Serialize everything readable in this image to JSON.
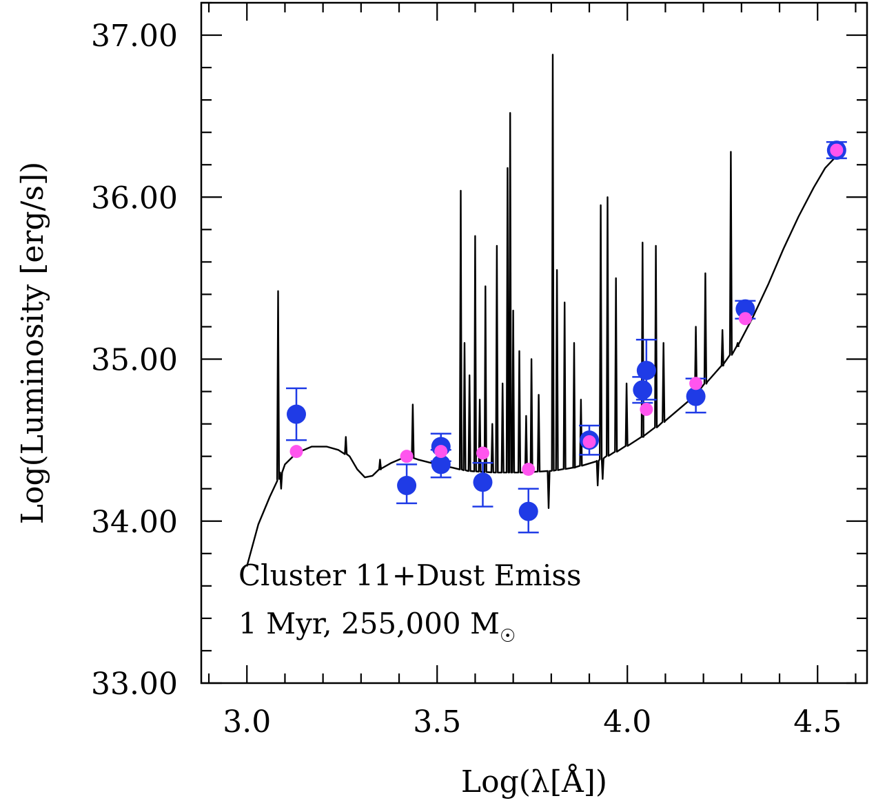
{
  "chart_data": {
    "type": "scatter",
    "xlabel": "Log(λ[Å])",
    "ylabel": "Log(Luminosity [erg/s])",
    "xlim": [
      2.88,
      4.63
    ],
    "ylim": [
      33.0,
      37.2
    ],
    "x_ticks": [
      3.0,
      3.5,
      4.0,
      4.5
    ],
    "x_tick_labels": [
      "3.0",
      "3.5",
      "4.0",
      "4.5"
    ],
    "y_ticks": [
      33.0,
      34.0,
      35.0,
      36.0,
      37.0
    ],
    "y_tick_labels": [
      "33.00",
      "34.00",
      "35.00",
      "36.00",
      "37.00"
    ],
    "annotation_line1": "Cluster 11+Dust Emiss",
    "annotation_line2": "1 Myr, 255,000 M",
    "annotation_symbol": "☉",
    "colors": {
      "observed": "#1f3be6",
      "model": "#ff55ee",
      "spectrum": "#000000"
    },
    "series": [
      {
        "marker": "filled-circle",
        "color": "#1f3be6",
        "error_bars": true,
        "points": [
          {
            "x": 3.13,
            "y": 34.66,
            "lo": 34.5,
            "hi": 34.82
          },
          {
            "x": 3.42,
            "y": 34.22,
            "lo": 34.11,
            "hi": 34.35
          },
          {
            "x": 3.51,
            "y": 34.46,
            "lo": 34.37,
            "hi": 34.54
          },
          {
            "x": 3.51,
            "y": 34.35,
            "lo": 34.27,
            "hi": 34.44
          },
          {
            "x": 3.62,
            "y": 34.24,
            "lo": 34.09,
            "hi": 34.36
          },
          {
            "x": 3.74,
            "y": 34.06,
            "lo": 33.93,
            "hi": 34.2
          },
          {
            "x": 3.9,
            "y": 34.5,
            "lo": 34.41,
            "hi": 34.59
          },
          {
            "x": 4.04,
            "y": 34.81,
            "lo": 34.73,
            "hi": 34.89
          },
          {
            "x": 4.05,
            "y": 34.93,
            "lo": 34.75,
            "hi": 35.12
          },
          {
            "x": 4.18,
            "y": 34.77,
            "lo": 34.67,
            "hi": 34.88
          },
          {
            "x": 4.31,
            "y": 35.31,
            "lo": 35.25,
            "hi": 35.36
          },
          {
            "x": 4.55,
            "y": 36.29,
            "lo": 36.24,
            "hi": 36.34
          }
        ]
      },
      {
        "marker": "small-filled-circle",
        "color": "#ff55ee",
        "points": [
          {
            "x": 3.13,
            "y": 34.43
          },
          {
            "x": 3.42,
            "y": 34.4
          },
          {
            "x": 3.51,
            "y": 34.43
          },
          {
            "x": 3.62,
            "y": 34.42
          },
          {
            "x": 3.74,
            "y": 34.32
          },
          {
            "x": 3.9,
            "y": 34.49
          },
          {
            "x": 4.05,
            "y": 34.69
          },
          {
            "x": 4.18,
            "y": 34.85
          },
          {
            "x": 4.31,
            "y": 35.25
          },
          {
            "x": 4.55,
            "y": 36.29
          }
        ]
      }
    ],
    "spectrum": {
      "color": "#000000",
      "continuum": [
        [
          3.0,
          33.72
        ],
        [
          3.03,
          33.98
        ],
        [
          3.06,
          34.15
        ],
        [
          3.08,
          34.25
        ],
        [
          3.1,
          34.35
        ],
        [
          3.13,
          34.42
        ],
        [
          3.17,
          34.46
        ],
        [
          3.21,
          34.46
        ],
        [
          3.24,
          34.44
        ],
        [
          3.27,
          34.4
        ],
        [
          3.29,
          34.32
        ],
        [
          3.31,
          34.27
        ],
        [
          3.33,
          34.28
        ],
        [
          3.35,
          34.32
        ],
        [
          3.38,
          34.36
        ],
        [
          3.42,
          34.4
        ],
        [
          3.45,
          34.38
        ],
        [
          3.5,
          34.35
        ],
        [
          3.54,
          34.33
        ],
        [
          3.58,
          34.31
        ],
        [
          3.65,
          34.3
        ],
        [
          3.72,
          34.3
        ],
        [
          3.8,
          34.31
        ],
        [
          3.86,
          34.33
        ],
        [
          3.92,
          34.37
        ],
        [
          3.98,
          34.44
        ],
        [
          4.04,
          34.52
        ],
        [
          4.1,
          34.62
        ],
        [
          4.16,
          34.74
        ],
        [
          4.21,
          34.86
        ],
        [
          4.25,
          34.96
        ],
        [
          4.29,
          35.08
        ],
        [
          4.33,
          35.26
        ],
        [
          4.37,
          35.46
        ],
        [
          4.41,
          35.68
        ],
        [
          4.45,
          35.88
        ],
        [
          4.49,
          36.06
        ],
        [
          4.52,
          36.18
        ],
        [
          4.56,
          36.28
        ]
      ],
      "emission_lines": [
        [
          3.082,
          35.42
        ],
        [
          3.26,
          34.52
        ],
        [
          3.35,
          34.38
        ],
        [
          3.436,
          34.72
        ],
        [
          3.562,
          36.04
        ],
        [
          3.572,
          35.1
        ],
        [
          3.585,
          34.9
        ],
        [
          3.6,
          35.76
        ],
        [
          3.612,
          34.75
        ],
        [
          3.627,
          35.45
        ],
        [
          3.645,
          34.6
        ],
        [
          3.657,
          35.7
        ],
        [
          3.672,
          34.85
        ],
        [
          3.685,
          36.18
        ],
        [
          3.692,
          36.52
        ],
        [
          3.7,
          35.3
        ],
        [
          3.716,
          35.05
        ],
        [
          3.734,
          34.65
        ],
        [
          3.748,
          35.0
        ],
        [
          3.767,
          34.78
        ],
        [
          3.804,
          36.88
        ],
        [
          3.815,
          35.55
        ],
        [
          3.835,
          35.35
        ],
        [
          3.86,
          35.1
        ],
        [
          3.878,
          34.75
        ],
        [
          3.93,
          35.95
        ],
        [
          3.948,
          36.0
        ],
        [
          3.97,
          35.5
        ],
        [
          3.998,
          34.85
        ],
        [
          4.04,
          35.72
        ],
        [
          4.075,
          35.7
        ],
        [
          4.095,
          35.1
        ],
        [
          4.18,
          35.2
        ],
        [
          4.205,
          35.53
        ],
        [
          4.25,
          35.18
        ],
        [
          4.272,
          36.28
        ],
        [
          4.29,
          35.1
        ]
      ],
      "absorption_lines": [
        [
          3.09,
          34.2
        ],
        [
          3.793,
          34.08
        ],
        [
          3.922,
          34.22
        ],
        [
          3.935,
          34.26
        ]
      ]
    }
  }
}
